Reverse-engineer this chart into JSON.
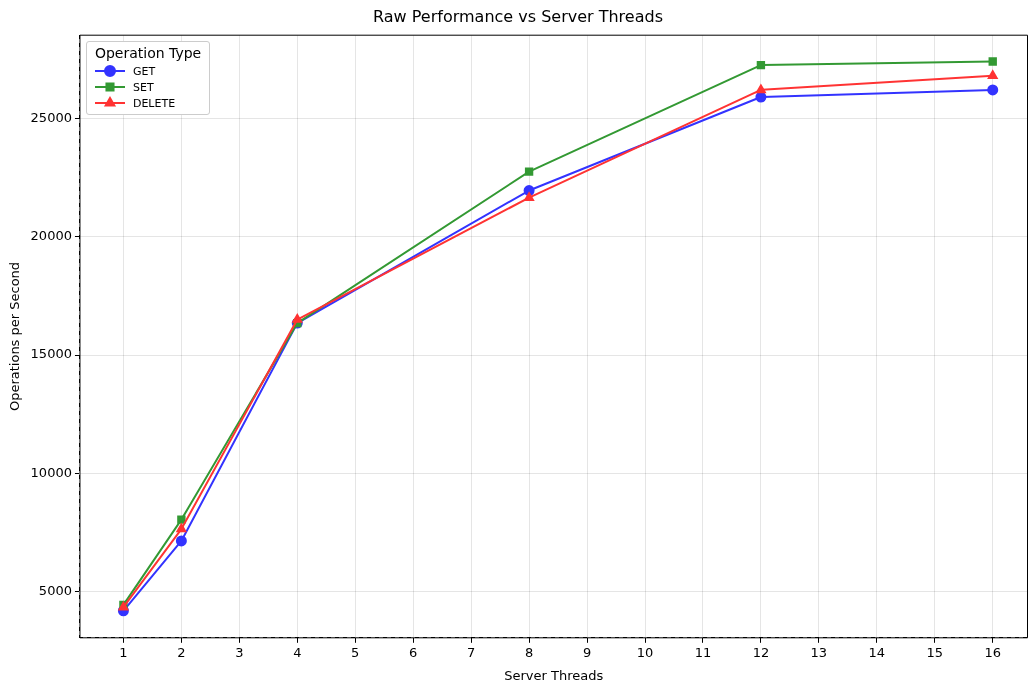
{
  "chart_data": {
    "type": "line",
    "title": "Raw Performance vs Server Threads",
    "xlabel": "Server Threads",
    "ylabel": "Operations per Second",
    "legend_title": "Operation Type",
    "x": [
      1,
      2,
      4,
      8,
      12,
      16
    ],
    "series": [
      {
        "name": "GET",
        "color": "#3333ff",
        "marker": "circle",
        "values": [
          4200,
          7150,
          16350,
          21950,
          25900,
          26200
        ]
      },
      {
        "name": "SET",
        "color": "#339933",
        "marker": "square",
        "values": [
          4450,
          8050,
          16350,
          22750,
          27250,
          27400
        ]
      },
      {
        "name": "DELETE",
        "color": "#ff3333",
        "marker": "triangle",
        "values": [
          4350,
          7650,
          16500,
          21650,
          26200,
          26800
        ]
      }
    ],
    "xlim": [
      0.25,
      16.6
    ],
    "xticks": [
      1,
      2,
      3,
      4,
      5,
      6,
      7,
      8,
      9,
      10,
      11,
      12,
      13,
      14,
      15,
      16
    ],
    "ylim": [
      3058,
      28512
    ],
    "yticks": [
      5000,
      10000,
      15000,
      20000,
      25000
    ],
    "grid": true,
    "legend": "top left",
    "line_style": "solid"
  }
}
